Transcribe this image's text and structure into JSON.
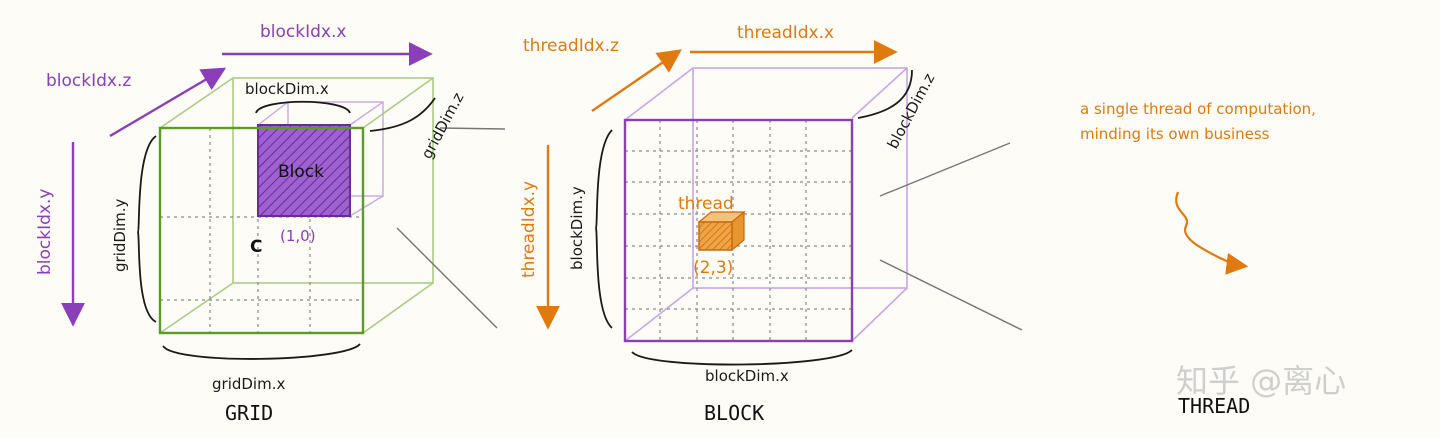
{
  "colors": {
    "purple": "#8a3fb8",
    "orange": "#e07a10",
    "green": "#5c9b2a",
    "light_green": "#a9cd85",
    "light_purple": "#c9a6e6",
    "ink": "#1a1a1a",
    "grid": "#8a8a8a",
    "watermark": "#cfcfcf"
  },
  "grid_panel": {
    "caption": "GRID",
    "blockidx_x": "blockIdx.x",
    "blockidx_y": "blockIdx.y",
    "blockidx_z": "blockIdx.z",
    "griddim_x": "gridDim.x",
    "griddim_y": "gridDim.y",
    "griddim_z": "gridDim.z",
    "blockdim_x": "blockDim.x",
    "block_label": "Block",
    "block_coord": "(1,0)",
    "corner_letter": "C"
  },
  "block_panel": {
    "caption": "BLOCK",
    "threadidx_x": "threadIdx.x",
    "threadidx_y": "threadIdx.y",
    "threadidx_z": "threadIdx.z",
    "blockdim_x": "blockDim.x",
    "blockdim_y": "blockDim.y",
    "blockdim_z": "blockDim.z",
    "thread_label": "thread",
    "thread_coord": "(2,3)"
  },
  "thread_panel": {
    "caption": "THREAD",
    "note_line1": "a single thread of computation,",
    "note_line2": "minding its own business"
  },
  "watermark": "知乎 @离心"
}
